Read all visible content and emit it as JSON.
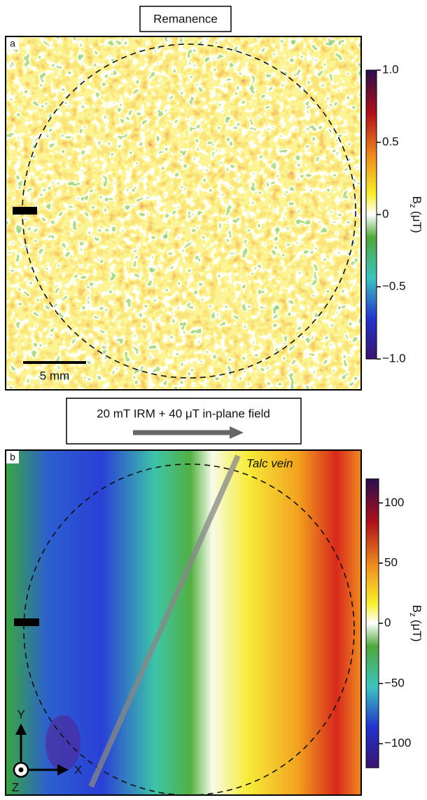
{
  "panels": [
    {
      "letter": "a",
      "title": "Remanence",
      "scale_bar": "5 mm",
      "colorbar": {
        "label": "B",
        "label_sub": "z",
        "label_unit": "(μT)",
        "clim": [
          -1,
          1
        ],
        "ticks": [
          {
            "value": 1,
            "label": "1.0"
          },
          0.5,
          0,
          {
            "value": -0.5,
            "label": "−0.5"
          },
          {
            "value": -1,
            "label": "−1.0"
          }
        ]
      }
    },
    {
      "letter": "b",
      "title": "20 mT IRM + 40 μT in-plane field",
      "annotation": "Talc vein",
      "axes": [
        "Y",
        "X",
        "Z"
      ],
      "colorbar": {
        "label": "B",
        "label_sub": "z",
        "label_unit": "(μT)",
        "clim": [
          -120,
          120
        ],
        "ticks": [
          100,
          50,
          0,
          {
            "value": -50,
            "label": "−50"
          },
          {
            "value": -100,
            "label": "−100"
          }
        ]
      }
    }
  ]
}
